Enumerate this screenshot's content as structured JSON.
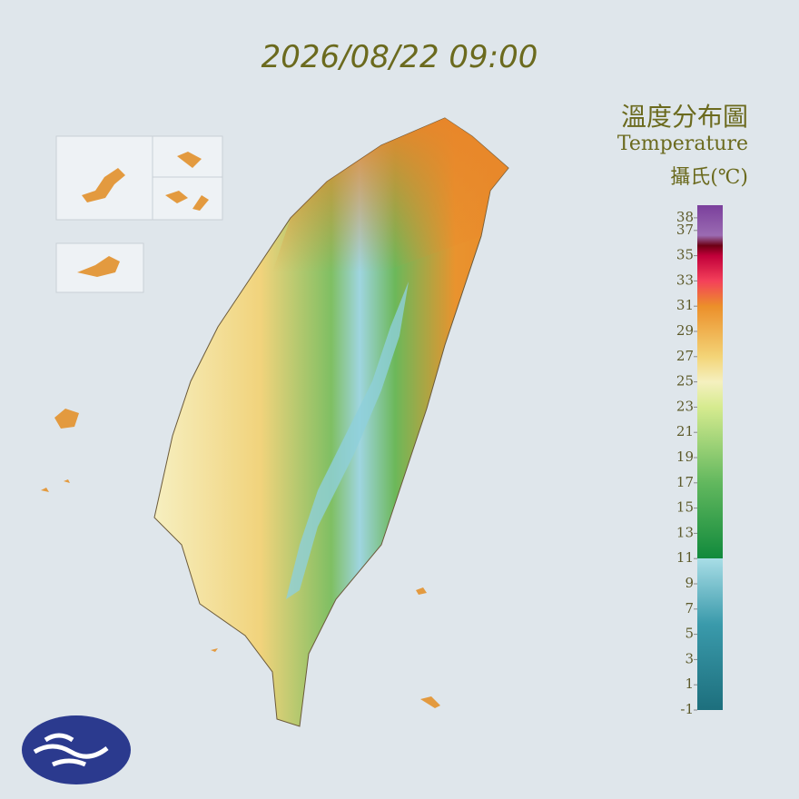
{
  "header": {
    "timestamp": "2026/08/22 09:00"
  },
  "legend": {
    "title_zh": "溫度分布圖",
    "title_en": "Temperature",
    "unit": "攝氏(℃)",
    "ylim": [
      -1,
      39
    ],
    "ticks": [
      38,
      37,
      35,
      33,
      31,
      29,
      27,
      25,
      23,
      21,
      19,
      17,
      15,
      13,
      11,
      9,
      7,
      5,
      3,
      1,
      -1
    ]
  }
}
